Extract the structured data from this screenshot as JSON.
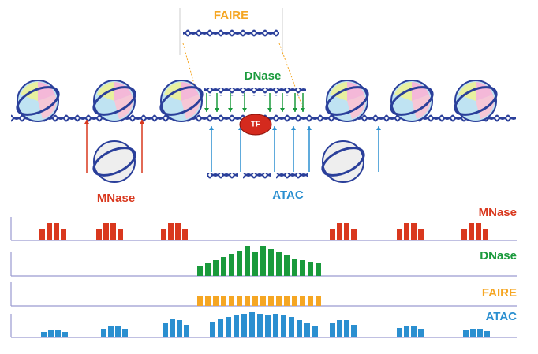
{
  "labels": {
    "faire": "FAIRE",
    "dnase": "DNase",
    "tf": "TF",
    "mnase": "MNase",
    "atac": "ATAC"
  },
  "tracks": [
    {
      "name": "MNase",
      "color": "#d9381e"
    },
    {
      "name": "DNase",
      "color": "#1a9a3c"
    },
    {
      "name": "FAIRE",
      "color": "#f5a623"
    },
    {
      "name": "ATAC",
      "color": "#2b8fd0"
    }
  ]
}
